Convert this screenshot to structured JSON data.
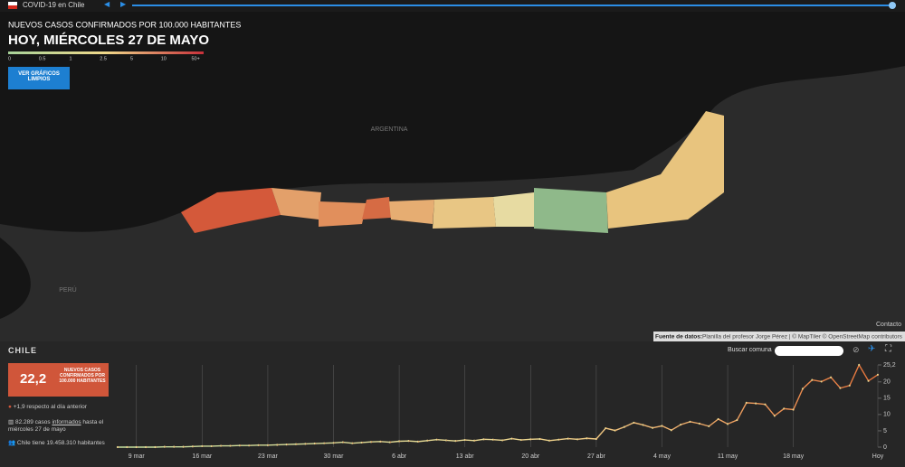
{
  "header": {
    "title": "COVID-19 en Chile"
  },
  "map": {
    "metric": "NUEVOS CASOS CONFIRMADOS POR 100.000 HABITANTES",
    "date": "HOY, MIÉRCOLES 27 DE MAYO",
    "legend": [
      "0",
      "0.5",
      "1",
      "2.5",
      "5",
      "10",
      "50+"
    ],
    "button": "VER GRÁFICOS LIMPIOS",
    "labels": [
      "ARGENTINA",
      "PERÚ"
    ],
    "contact": "Contacto",
    "attribution_label": "Fuente de datos:",
    "attribution": "Planilla del profesor Jorge Pérez | © MapTiler © OpenStreetMap contributors"
  },
  "panel": {
    "region": "CHILE",
    "search_label": "Buscar comuna",
    "stat_value": "22,2",
    "stat_label": "NUEVOS CASOS CONFIRMADOS POR 100.000 HABITANTES",
    "change": "+1,9 respecto al día anterior",
    "cases_prefix": "82.289 casos",
    "cases_link": "informados",
    "cases_suffix": "hasta el miércoles 27 de mayo",
    "population": "Chile tiene 19.458.310 habitantes"
  },
  "chart_data": {
    "type": "line",
    "color": "#e8743b",
    "grid": true,
    "categories": [
      null,
      null,
      "9 mar",
      null,
      null,
      null,
      null,
      null,
      null,
      "16 mar",
      null,
      null,
      null,
      null,
      null,
      null,
      "23 mar",
      null,
      null,
      null,
      null,
      null,
      null,
      "30 mar",
      null,
      null,
      null,
      null,
      null,
      null,
      "6 abr",
      null,
      null,
      null,
      null,
      null,
      null,
      "13 abr",
      null,
      null,
      null,
      null,
      null,
      null,
      "20 abr",
      null,
      null,
      null,
      null,
      null,
      null,
      "27 abr",
      null,
      null,
      null,
      null,
      null,
      null,
      "4 may",
      null,
      null,
      null,
      null,
      null,
      null,
      "11 may",
      null,
      null,
      null,
      null,
      null,
      null,
      "18 may",
      null,
      null,
      null,
      null,
      null,
      null,
      null,
      null,
      "Hoy"
    ],
    "values": [
      0,
      0,
      0,
      0,
      0,
      0.1,
      0.1,
      0.1,
      0.2,
      0.3,
      0.3,
      0.4,
      0.4,
      0.5,
      0.5,
      0.6,
      0.6,
      0.7,
      0.8,
      0.9,
      1.0,
      1.1,
      1.2,
      1.3,
      1.5,
      1.2,
      1.4,
      1.6,
      1.7,
      1.5,
      1.8,
      1.9,
      1.7,
      2.0,
      2.3,
      2.1,
      1.9,
      2.2,
      2.0,
      2.4,
      2.3,
      2.1,
      2.6,
      2.2,
      2.4,
      2.5,
      2.0,
      2.3,
      2.6,
      2.4,
      2.7,
      2.5,
      5.8,
      5.1,
      6.2,
      7.5,
      6.8,
      5.9,
      6.5,
      5.2,
      6.9,
      7.8,
      7.2,
      6.4,
      8.6,
      7.1,
      8.3,
      13.6,
      13.4,
      13.1,
      9.6,
      11.8,
      11.5,
      17.9,
      20.6,
      20.1,
      21.4,
      18.1,
      18.9,
      25.2,
      20.3,
      22.2
    ],
    "ylim": [
      0,
      25.2
    ],
    "yticks": [
      0,
      5,
      10,
      15,
      20,
      {
        "value": 25.2,
        "label": "25,2"
      }
    ]
  }
}
